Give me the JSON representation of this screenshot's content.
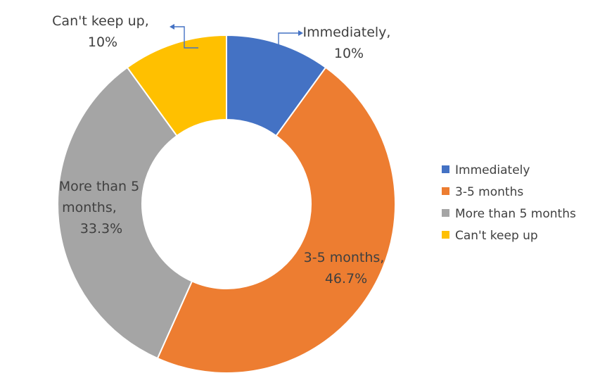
{
  "chart_data": {
    "type": "donut",
    "title": "",
    "legend_position": "right",
    "slices": [
      {
        "name": "Immediately",
        "value": 10,
        "label_line1": "Immediately,",
        "label_line2": "10%",
        "color": "#4472C4"
      },
      {
        "name": "3-5 months",
        "value": 46.7,
        "label_line1": "3-5 months,",
        "label_line2": "46.7%",
        "color": "#ED7D31"
      },
      {
        "name": "More than 5 months",
        "value": 33.3,
        "label_line1": "More than 5",
        "label_line2": "months,",
        "label_line3": "33.3%",
        "color": "#A5A5A5"
      },
      {
        "name": "Can't keep up",
        "value": 10,
        "label_line1": "Can't keep up,",
        "label_line2": "10%",
        "color": "#FFC000"
      }
    ]
  }
}
